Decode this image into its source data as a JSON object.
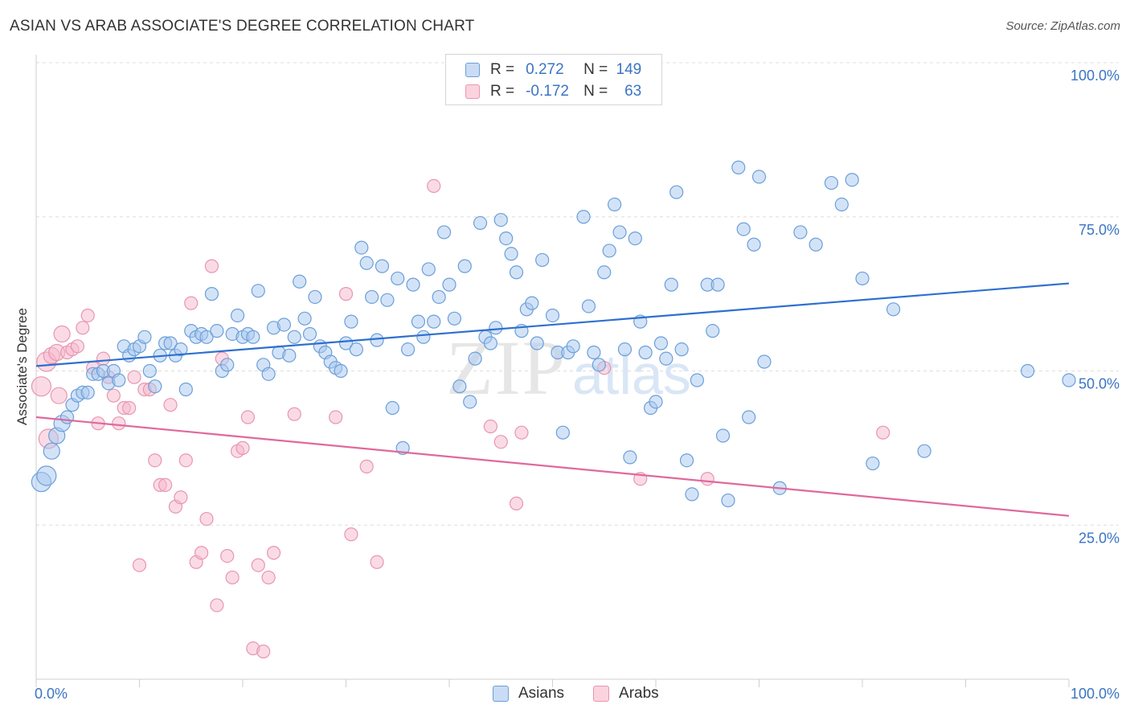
{
  "title": "ASIAN VS ARAB ASSOCIATE'S DEGREE CORRELATION CHART",
  "source": "Source: ZipAtlas.com",
  "watermark": "ZIPatlas",
  "legend_top": [
    {
      "r_label": "R =",
      "r_value": "0.272",
      "n_label": "N =",
      "n_value": "149",
      "color": "#a8c8f0"
    },
    {
      "r_label": "R =",
      "r_value": "-0.172",
      "n_label": "N =",
      "n_value": "63",
      "color": "#f5b8cb"
    }
  ],
  "bottom_legend": [
    {
      "label": "Asians",
      "color": "#a8c8f0"
    },
    {
      "label": "Arabs",
      "color": "#f5b8cb"
    }
  ],
  "chart_data": {
    "type": "scatter",
    "ylabel": "Associate's Degree",
    "xlabel": "",
    "xlim": [
      0,
      100
    ],
    "ylim": [
      0,
      100
    ],
    "x_tick_labels": {
      "left": "0.0%",
      "right": "100.0%"
    },
    "y_tick_labels": [
      "100.0%",
      "75.0%",
      "50.0%",
      "25.0%"
    ],
    "y_tick_values": [
      100,
      75,
      50,
      25
    ],
    "grid": true,
    "series": [
      {
        "name": "Asians",
        "color": "#6b9fd9",
        "fill": "#a8c8f0",
        "line_color": "#2e70cf",
        "trend": [
          [
            0,
            50.8
          ],
          [
            100,
            64.2
          ]
        ],
        "points": [
          [
            0.5,
            32.0
          ],
          [
            1,
            33.0
          ],
          [
            1.5,
            37.0
          ],
          [
            2,
            39.5
          ],
          [
            2.5,
            41.5
          ],
          [
            3,
            42.5
          ],
          [
            3.5,
            44.5
          ],
          [
            4,
            46.0
          ],
          [
            4.5,
            46.5
          ],
          [
            5,
            46.5
          ],
          [
            5.5,
            49.5
          ],
          [
            6,
            49.5
          ],
          [
            6.5,
            50.0
          ],
          [
            7,
            48.0
          ],
          [
            7.5,
            50.0
          ],
          [
            8,
            48.5
          ],
          [
            8.5,
            54.0
          ],
          [
            9,
            52.5
          ],
          [
            9.5,
            53.5
          ],
          [
            10,
            54.0
          ],
          [
            10.5,
            55.5
          ],
          [
            11,
            50.0
          ],
          [
            11.5,
            47.5
          ],
          [
            12,
            52.5
          ],
          [
            12.5,
            54.5
          ],
          [
            13,
            54.5
          ],
          [
            13.5,
            52.5
          ],
          [
            14,
            53.5
          ],
          [
            14.5,
            47.0
          ],
          [
            15,
            56.5
          ],
          [
            15.5,
            55.5
          ],
          [
            16,
            56.0
          ],
          [
            16.5,
            55.5
          ],
          [
            17,
            62.5
          ],
          [
            17.5,
            56.5
          ],
          [
            18,
            50.0
          ],
          [
            18.5,
            51.0
          ],
          [
            19,
            56.0
          ],
          [
            19.5,
            59.0
          ],
          [
            20,
            55.5
          ],
          [
            20.5,
            56.0
          ],
          [
            21,
            55.5
          ],
          [
            21.5,
            63.0
          ],
          [
            22,
            51.0
          ],
          [
            22.5,
            49.5
          ],
          [
            23,
            57.0
          ],
          [
            23.5,
            53.0
          ],
          [
            24,
            57.5
          ],
          [
            24.5,
            52.5
          ],
          [
            25,
            55.5
          ],
          [
            25.5,
            64.5
          ],
          [
            26,
            58.5
          ],
          [
            26.5,
            56.0
          ],
          [
            27,
            62.0
          ],
          [
            27.5,
            54.0
          ],
          [
            28,
            53.0
          ],
          [
            28.5,
            51.5
          ],
          [
            29,
            50.5
          ],
          [
            29.5,
            50.0
          ],
          [
            30,
            54.5
          ],
          [
            30.5,
            58.0
          ],
          [
            31,
            53.5
          ],
          [
            31.5,
            70.0
          ],
          [
            32,
            67.5
          ],
          [
            32.5,
            62.0
          ],
          [
            33,
            55.0
          ],
          [
            33.5,
            67.0
          ],
          [
            34,
            61.5
          ],
          [
            34.5,
            44.0
          ],
          [
            35,
            65.0
          ],
          [
            35.5,
            37.5
          ],
          [
            36,
            53.5
          ],
          [
            36.5,
            64.0
          ],
          [
            37,
            58.0
          ],
          [
            37.5,
            55.5
          ],
          [
            38,
            66.5
          ],
          [
            38.5,
            58.0
          ],
          [
            39,
            62.0
          ],
          [
            39.5,
            72.5
          ],
          [
            40,
            64.0
          ],
          [
            40.5,
            58.5
          ],
          [
            41,
            47.5
          ],
          [
            41.5,
            67.0
          ],
          [
            42,
            45.0
          ],
          [
            42.5,
            52.0
          ],
          [
            43,
            74.0
          ],
          [
            43.5,
            55.5
          ],
          [
            44,
            54.5
          ],
          [
            44.5,
            57.0
          ],
          [
            45,
            74.5
          ],
          [
            45.5,
            71.5
          ],
          [
            46,
            69.0
          ],
          [
            46.5,
            66.0
          ],
          [
            47,
            56.5
          ],
          [
            47.5,
            60.0
          ],
          [
            48,
            61.0
          ],
          [
            48.5,
            54.5
          ],
          [
            49,
            68.0
          ],
          [
            50,
            59.0
          ],
          [
            50.5,
            53.0
          ],
          [
            51,
            40.0
          ],
          [
            51.5,
            53.0
          ],
          [
            52,
            54.0
          ],
          [
            53,
            75.0
          ],
          [
            53.5,
            60.5
          ],
          [
            54,
            53.0
          ],
          [
            54.5,
            51.0
          ],
          [
            55,
            66.0
          ],
          [
            55.5,
            69.5
          ],
          [
            56,
            77.0
          ],
          [
            56.5,
            72.5
          ],
          [
            57,
            53.5
          ],
          [
            57.5,
            36.0
          ],
          [
            58,
            71.5
          ],
          [
            58.5,
            58.0
          ],
          [
            59,
            53.0
          ],
          [
            59.5,
            44.0
          ],
          [
            60,
            45.0
          ],
          [
            60.5,
            54.5
          ],
          [
            61,
            52.0
          ],
          [
            61.5,
            64.0
          ],
          [
            62,
            79.0
          ],
          [
            62.5,
            53.5
          ],
          [
            63,
            35.5
          ],
          [
            63.5,
            30.0
          ],
          [
            64,
            48.5
          ],
          [
            65,
            64.0
          ],
          [
            65.5,
            56.5
          ],
          [
            66,
            64.0
          ],
          [
            66.5,
            39.5
          ],
          [
            67,
            29.0
          ],
          [
            68,
            83.0
          ],
          [
            68.5,
            73.0
          ],
          [
            69,
            42.5
          ],
          [
            69.5,
            70.5
          ],
          [
            70,
            81.5
          ],
          [
            70.5,
            51.5
          ],
          [
            72,
            31.0
          ],
          [
            74,
            72.5
          ],
          [
            75.5,
            70.5
          ],
          [
            77,
            80.5
          ],
          [
            78,
            77.0
          ],
          [
            79,
            81.0
          ],
          [
            81,
            35.0
          ],
          [
            86,
            37.0
          ],
          [
            100,
            48.5
          ],
          [
            96,
            50.0
          ],
          [
            83,
            60.0
          ],
          [
            80,
            65.0
          ]
        ]
      },
      {
        "name": "Arabs",
        "color": "#e896b0",
        "fill": "#f5b8cb",
        "line_color": "#e0699a",
        "trend": [
          [
            0,
            42.5
          ],
          [
            100,
            26.5
          ]
        ],
        "points": [
          [
            0.5,
            47.5
          ],
          [
            1,
            51.5
          ],
          [
            1.5,
            52.5
          ],
          [
            2,
            53.0
          ],
          [
            2.5,
            56.0
          ],
          [
            3,
            53.0
          ],
          [
            3.5,
            53.5
          ],
          [
            4,
            54.0
          ],
          [
            4.5,
            57.0
          ],
          [
            5,
            59.0
          ],
          [
            5.5,
            50.5
          ],
          [
            6,
            41.5
          ],
          [
            6.5,
            52.0
          ],
          [
            7,
            49.0
          ],
          [
            7.5,
            46.0
          ],
          [
            8,
            41.5
          ],
          [
            8.5,
            44.0
          ],
          [
            9,
            44.0
          ],
          [
            9.5,
            49.0
          ],
          [
            10,
            18.5
          ],
          [
            10.5,
            47.0
          ],
          [
            11,
            47.0
          ],
          [
            11.5,
            35.5
          ],
          [
            12,
            31.5
          ],
          [
            12.5,
            31.5
          ],
          [
            13,
            44.5
          ],
          [
            13.5,
            28.0
          ],
          [
            14,
            29.5
          ],
          [
            14.5,
            35.5
          ],
          [
            15,
            61.0
          ],
          [
            15.5,
            19.0
          ],
          [
            16,
            20.5
          ],
          [
            16.5,
            26.0
          ],
          [
            17,
            67.0
          ],
          [
            17.5,
            12.0
          ],
          [
            18,
            52.0
          ],
          [
            18.5,
            20.0
          ],
          [
            19,
            16.5
          ],
          [
            19.5,
            37.0
          ],
          [
            20,
            37.5
          ],
          [
            20.5,
            42.5
          ],
          [
            21,
            5.0
          ],
          [
            21.5,
            18.5
          ],
          [
            22,
            4.5
          ],
          [
            22.5,
            16.5
          ],
          [
            23,
            20.5
          ],
          [
            25,
            43.0
          ],
          [
            29,
            42.5
          ],
          [
            30,
            62.5
          ],
          [
            30.5,
            23.5
          ],
          [
            32,
            34.5
          ],
          [
            33,
            19.0
          ],
          [
            38.5,
            80.0
          ],
          [
            44,
            41.0
          ],
          [
            45,
            38.5
          ],
          [
            46.5,
            28.5
          ],
          [
            47,
            40.0
          ],
          [
            55,
            50.5
          ],
          [
            58.5,
            32.5
          ],
          [
            65,
            32.5
          ],
          [
            82,
            40.0
          ],
          [
            2.2,
            46.0
          ],
          [
            1.2,
            39.0
          ]
        ]
      }
    ]
  }
}
